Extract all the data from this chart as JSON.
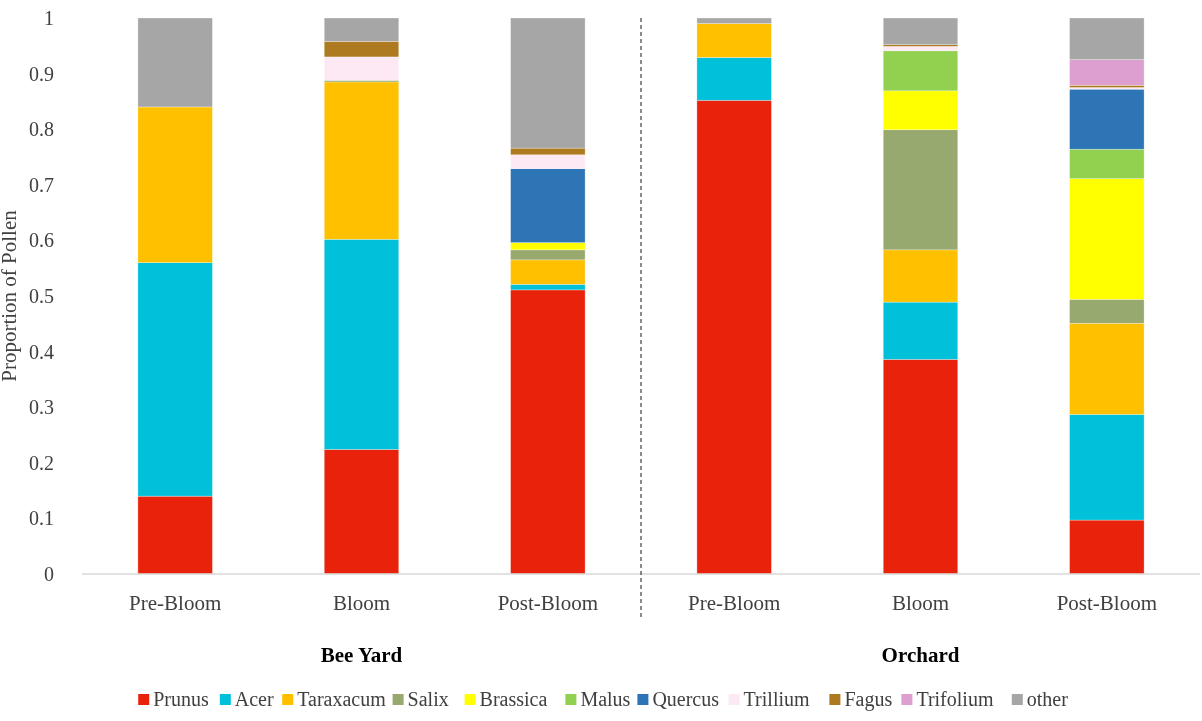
{
  "chart_data": {
    "type": "bar",
    "stacked": true,
    "ylabel": "Proportion of Pollen",
    "categories": [
      "Pre-Bloom",
      "Bloom",
      "Post-Bloom",
      "Pre-Bloom",
      "Bloom",
      "Post-Bloom"
    ],
    "annotations": [
      "Bee Yard",
      "Orchard"
    ],
    "ylim": [
      0,
      1
    ],
    "yticks": [
      0,
      0.1,
      0.2,
      0.3,
      0.4,
      0.5,
      0.6,
      0.7,
      0.8,
      0.9,
      1
    ],
    "grid": false,
    "legend": "bottom",
    "series": [
      {
        "name": "Prunus",
        "color": "#e9230b",
        "values": [
          0.14,
          0.224,
          0.511,
          0.852,
          0.386,
          0.097
        ]
      },
      {
        "name": "Acer",
        "color": "#00c0da",
        "values": [
          0.42,
          0.378,
          0.01,
          0.077,
          0.103,
          0.19
        ]
      },
      {
        "name": "Taraxacum",
        "color": "#ffc000",
        "values": [
          0.28,
          0.283,
          0.044,
          0.061,
          0.094,
          0.164
        ]
      },
      {
        "name": "Salix",
        "color": "#98a96f",
        "values": [
          null,
          0.003,
          0.018,
          null,
          0.216,
          0.043
        ]
      },
      {
        "name": "Brassica",
        "color": "#ffff00",
        "values": [
          null,
          null,
          0.013,
          null,
          0.07,
          0.217
        ]
      },
      {
        "name": "Malus",
        "color": "#92d050",
        "values": [
          null,
          null,
          null,
          null,
          0.072,
          0.053
        ]
      },
      {
        "name": "Quercus",
        "color": "#2e75b6",
        "values": [
          null,
          null,
          0.133,
          null,
          null,
          0.108
        ]
      },
      {
        "name": "Trillium",
        "color": "#fde9f4",
        "values": [
          null,
          0.042,
          0.025,
          null,
          0.008,
          0.003
        ]
      },
      {
        "name": "Fagus",
        "color": "#ae7a20",
        "values": [
          null,
          0.028,
          0.012,
          null,
          0.003,
          0.004
        ]
      },
      {
        "name": "Trifolium",
        "color": "#dd9fcf",
        "values": [
          null,
          null,
          null,
          null,
          null,
          0.046
        ]
      },
      {
        "name": "other",
        "color": "#a6a6a6",
        "values": [
          0.16,
          0.042,
          0.234,
          0.01,
          0.048,
          0.075
        ]
      }
    ]
  }
}
